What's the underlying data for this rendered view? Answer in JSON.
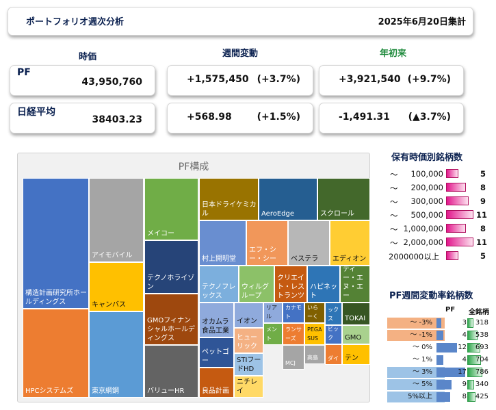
{
  "header": {
    "title": "ポートフォリオ週次分析",
    "date": "2025年6月20日集計"
  },
  "columns": {
    "price": "時価",
    "weekly": "週間変動",
    "ytd": "年初来"
  },
  "rows": [
    {
      "label": "PF",
      "value": "43,950,760",
      "weekly_abs": "+1,575,450",
      "weekly_pct": "(+3.7%)",
      "ytd_abs": "+3,921,540",
      "ytd_pct": "(+9.7%)"
    },
    {
      "label": "日経平均",
      "value": "38403.23",
      "weekly_abs": "+568.98",
      "weekly_pct": "(+1.5%)",
      "ytd_abs": "-1,491.31",
      "ytd_pct": "(▲3.7%)"
    }
  ],
  "treemap": {
    "title": "PF構成",
    "tiles": [
      {
        "label": "構造計画研究所ホールディングス",
        "color": "#4472c4"
      },
      {
        "label": "HPCシステムズ",
        "color": "#ed7d31"
      },
      {
        "label": "アイモバイル",
        "color": "#a5a5a5"
      },
      {
        "label": "キャンバス",
        "color": "#ffc000"
      },
      {
        "label": "東京綱鋼",
        "color": "#5b9bd5"
      },
      {
        "label": "メイコー",
        "color": "#70ad47"
      },
      {
        "label": "テクノホライゾン",
        "color": "#264478"
      },
      {
        "label": "GMOフィナンシャルホールディングス",
        "color": "#9e480e"
      },
      {
        "label": "バリューHR",
        "color": "#636363"
      },
      {
        "label": "日本ドライケミカル",
        "color": "#997300"
      },
      {
        "label": "AeroEdge",
        "color": "#255e91"
      },
      {
        "label": "スクロール",
        "color": "#43682b"
      },
      {
        "label": "村上開明堂",
        "color": "#698ed0"
      },
      {
        "label": "エフ・シー・シー",
        "color": "#f1975a"
      },
      {
        "label": "ベステラ",
        "color": "#b7b7b7"
      },
      {
        "label": "エディオン",
        "color": "#ffcd33"
      },
      {
        "label": "テクノフレックス",
        "color": "#7cafdd"
      },
      {
        "label": "ウィルグループ",
        "color": "#8cc168"
      },
      {
        "label": "クリエイト・レストランツ",
        "color": "#c55a11"
      },
      {
        "label": "ハピネット",
        "color": "#2e75b6"
      },
      {
        "label": "ディー・エヌ・エー",
        "color": "#548235"
      },
      {
        "label": "オカムラ食品工業",
        "color": "#8faadc"
      },
      {
        "label": "ペットゴー",
        "color": "#2f5597"
      },
      {
        "label": "良品計画",
        "color": "#c55a11"
      },
      {
        "label": "イオン",
        "color": "#8faadc"
      },
      {
        "label": "ヒューリック",
        "color": "#f4b183"
      },
      {
        "label": "STIフードHD",
        "color": "#9dc3e6"
      },
      {
        "label": "ニチレイ",
        "color": "#ffd966"
      },
      {
        "label": "ジャパンマテリアル",
        "color": "#8faadc"
      },
      {
        "label": "GMOペイメント",
        "color": "#70ad47"
      },
      {
        "label": "カナモト",
        "color": "#4472c4"
      },
      {
        "label": "ランサーズ",
        "color": "#ed7d31"
      },
      {
        "label": "すかいらーく",
        "color": "#806000"
      },
      {
        "label": "PEGASUS",
        "color": "#ffc000"
      },
      {
        "label": "高島",
        "color": "#a5a5a5"
      },
      {
        "label": "オリックス",
        "color": "#2e75b6"
      },
      {
        "label": "TOKAI",
        "color": "#375623"
      },
      {
        "label": "GMO",
        "color": "#a9d18e"
      },
      {
        "label": "MCJ",
        "color": "#a5a5a5"
      },
      {
        "label": "ビック",
        "color": "#4472c4"
      },
      {
        "label": "ダイ",
        "color": "#ed7d31"
      },
      {
        "label": "テン",
        "color": "#ffc000"
      }
    ]
  },
  "holdings_by_value": {
    "title": "保有時価別銘柄数",
    "rows": [
      {
        "prefix": "～",
        "threshold": "100,000",
        "count": 5,
        "count_label": "5"
      },
      {
        "prefix": "～",
        "threshold": "200,000",
        "count": 8,
        "count_label": "8"
      },
      {
        "prefix": "～",
        "threshold": "300,000",
        "count": 9,
        "count_label": "9"
      },
      {
        "prefix": "～",
        "threshold": "500,000",
        "count": 11,
        "count_label": "11"
      },
      {
        "prefix": "～",
        "threshold": "1,000,000",
        "count": 8,
        "count_label": "8"
      },
      {
        "prefix": "～",
        "threshold": "2,000,000",
        "count": 11,
        "count_label": "11"
      },
      {
        "prefix": "",
        "threshold": "2000000以上",
        "count": 5,
        "count_label": "5"
      }
    ]
  },
  "weekly_change": {
    "title": "PF週間変動率銘柄数",
    "col_pf": "PF",
    "col_all": "全銘柄",
    "colors": {
      "negative": "#f4b183",
      "positive": "#9dc3e6"
    },
    "rows": [
      {
        "label": "～ -3%",
        "pf": 3,
        "pf_label": "3",
        "all": 318,
        "all_label": "318",
        "tone": "negative"
      },
      {
        "label": "～ -1%",
        "pf": 4,
        "pf_label": "4",
        "all": 538,
        "all_label": "538",
        "tone": "negative"
      },
      {
        "label": "～ 0%",
        "pf": 12,
        "pf_label": "12",
        "all": 693,
        "all_label": "693",
        "tone": "neutral"
      },
      {
        "label": "～ 1%",
        "pf": 4,
        "pf_label": "4",
        "all": 704,
        "all_label": "704",
        "tone": "neutral"
      },
      {
        "label": "～ 3%",
        "pf": 17,
        "pf_label": "17",
        "all": 786,
        "all_label": "786",
        "tone": "positive"
      },
      {
        "label": "～ 5%",
        "pf": 9,
        "pf_label": "9",
        "all": 340,
        "all_label": "340",
        "tone": "positive"
      },
      {
        "label": "5%以上",
        "pf": 8,
        "pf_label": "8",
        "all": 425,
        "all_label": "425",
        "tone": "positive"
      }
    ]
  }
}
